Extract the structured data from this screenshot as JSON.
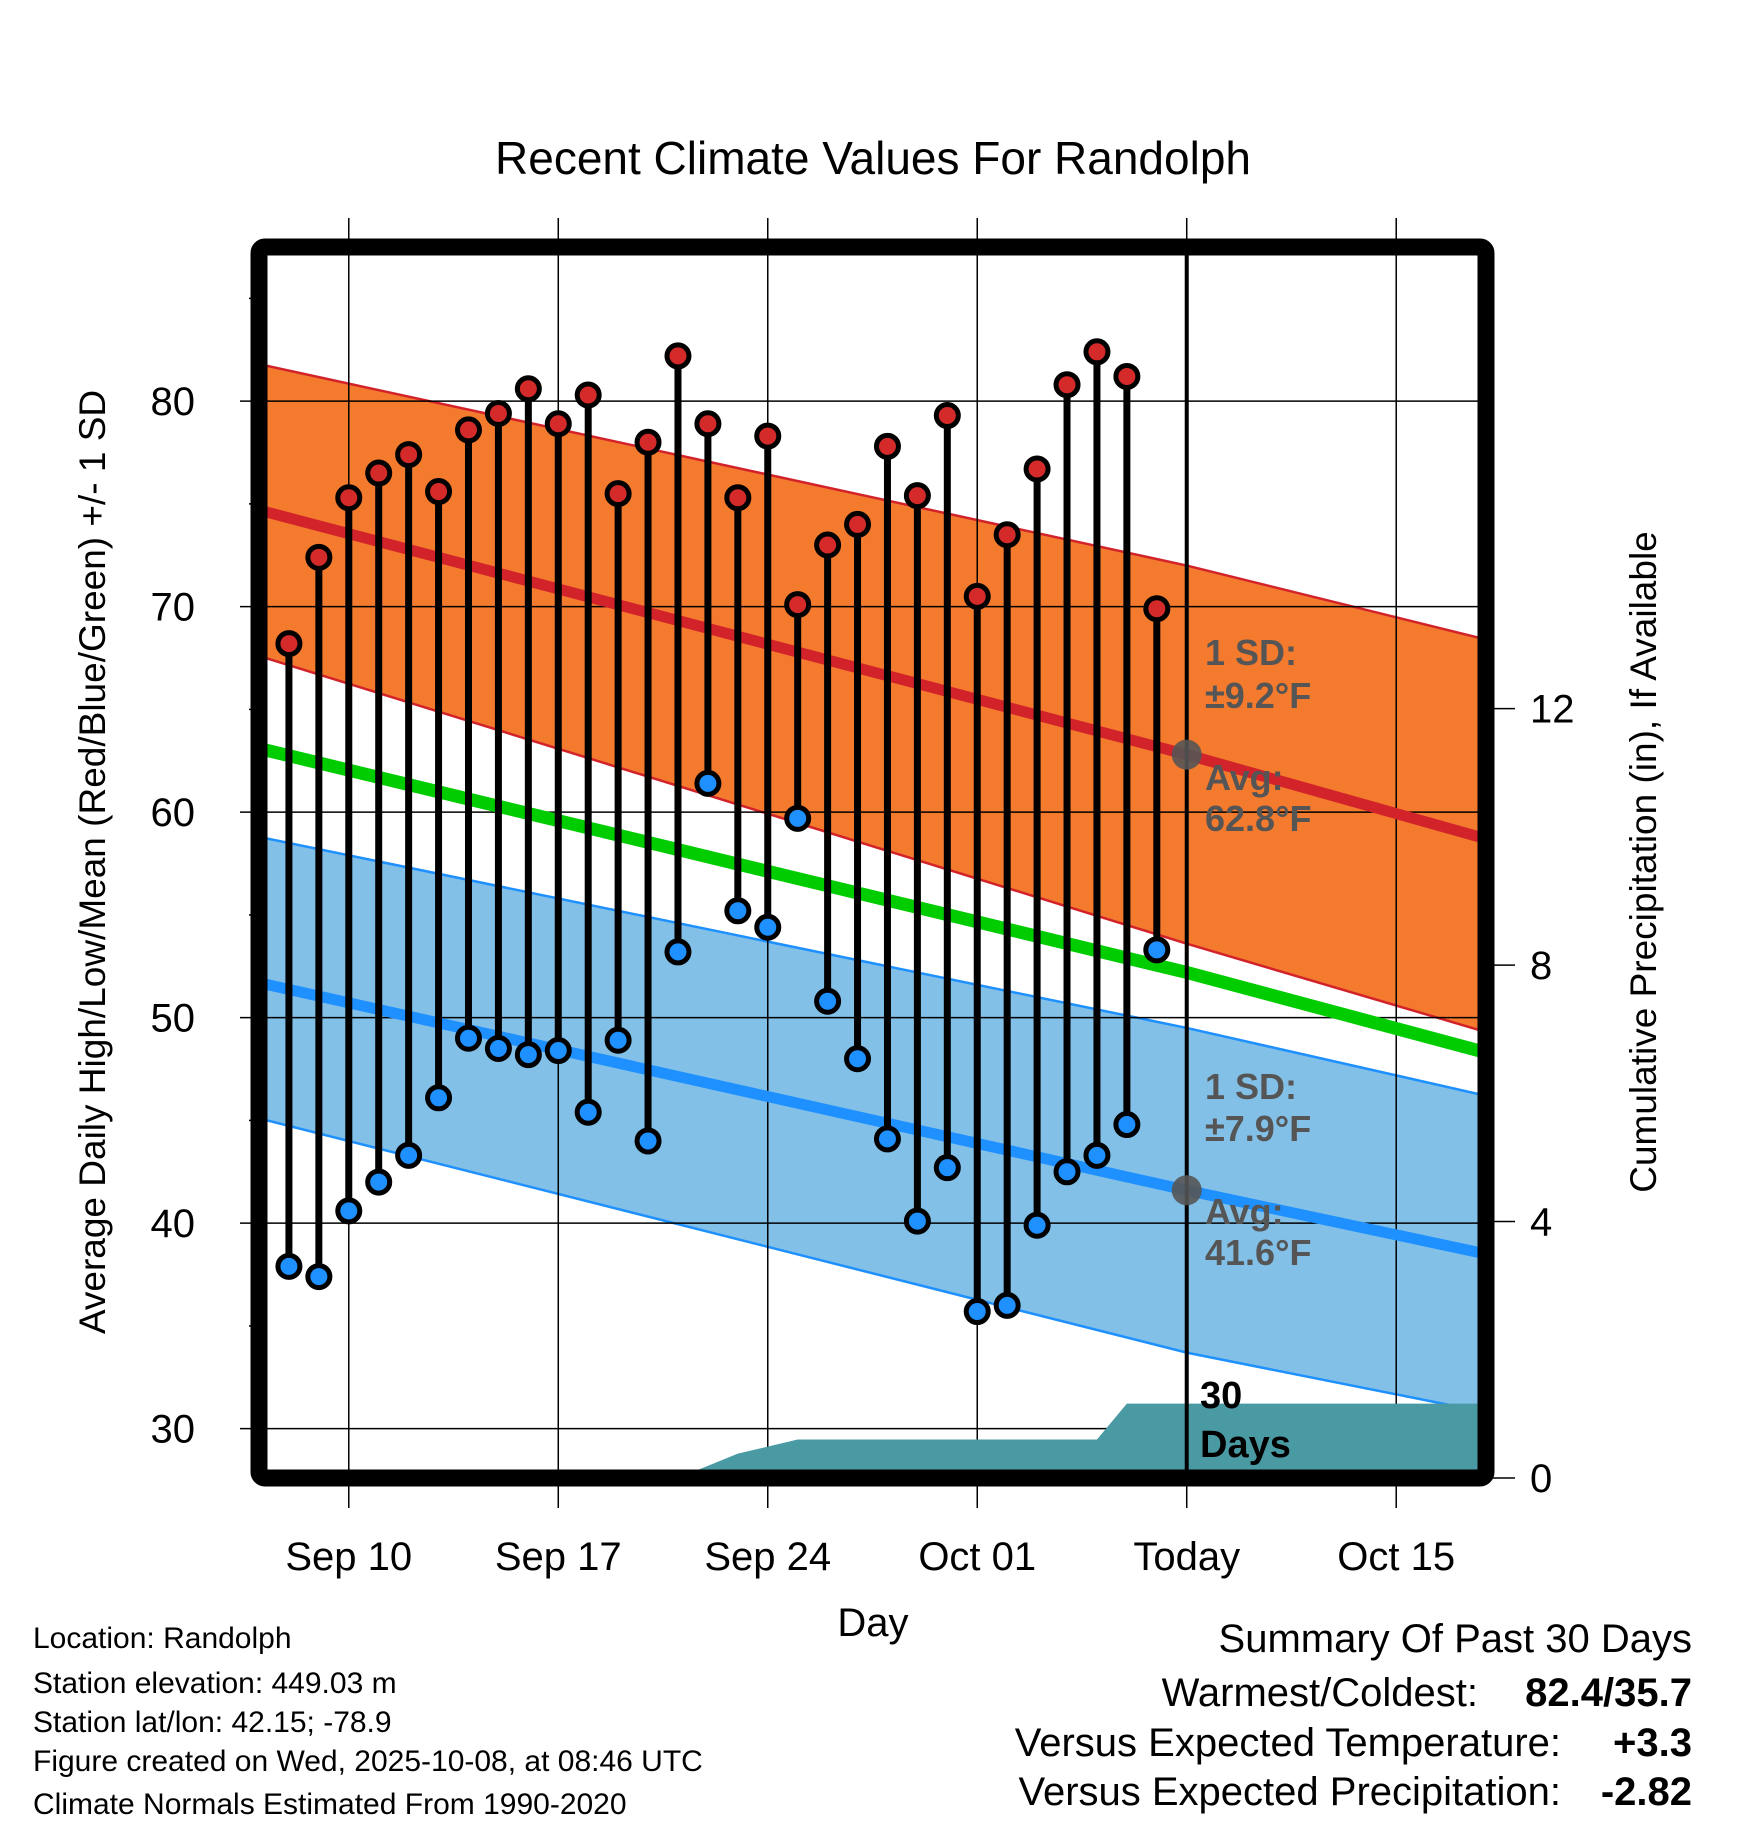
{
  "chart_data": {
    "type": "line",
    "title": "Recent Climate Values For Randolph",
    "xlabel": "Day",
    "ylabel": "Average Daily High/Low/Mean (Red/Blue/Green) +/- 1 SD",
    "y2label": "Cumulative Precipitation (in), If Available",
    "x_domain": [
      "2025-09-07",
      "2025-10-18"
    ],
    "ylim": [
      27.6,
      87.5
    ],
    "y2lim": [
      0,
      19.2
    ],
    "grid": true,
    "x_ticks": [
      {
        "date": "2025-09-10",
        "label": "Sep 10"
      },
      {
        "date": "2025-09-17",
        "label": "Sep 17"
      },
      {
        "date": "2025-09-24",
        "label": "Sep 24"
      },
      {
        "date": "2025-10-01",
        "label": "Oct 01"
      },
      {
        "date": "2025-10-08",
        "label": "Today"
      },
      {
        "date": "2025-10-15",
        "label": "Oct 15"
      }
    ],
    "y_ticks": [
      30,
      40,
      50,
      60,
      70,
      80
    ],
    "y_minor_ticks": [
      35,
      45,
      55,
      65,
      75,
      85
    ],
    "y2_ticks": [
      0,
      4,
      8,
      12
    ],
    "today": "2025-10-08",
    "daily": {
      "dates": [
        "2025-09-08",
        "2025-09-09",
        "2025-09-10",
        "2025-09-11",
        "2025-09-12",
        "2025-09-13",
        "2025-09-14",
        "2025-09-15",
        "2025-09-16",
        "2025-09-17",
        "2025-09-18",
        "2025-09-19",
        "2025-09-20",
        "2025-09-21",
        "2025-09-22",
        "2025-09-23",
        "2025-09-24",
        "2025-09-25",
        "2025-09-26",
        "2025-09-27",
        "2025-09-28",
        "2025-09-29",
        "2025-09-30",
        "2025-10-01",
        "2025-10-02",
        "2025-10-03",
        "2025-10-04",
        "2025-10-05",
        "2025-10-06",
        "2025-10-07"
      ],
      "highs": [
        68.2,
        72.4,
        75.3,
        76.5,
        77.4,
        75.6,
        78.6,
        79.4,
        80.6,
        78.9,
        80.3,
        75.5,
        78.0,
        82.2,
        78.9,
        75.3,
        78.3,
        70.1,
        73.0,
        74.0,
        77.8,
        75.4,
        79.3,
        70.5,
        73.5,
        76.7,
        80.8,
        82.4,
        81.2,
        69.9
      ],
      "lows": [
        37.9,
        37.4,
        40.6,
        42.0,
        43.3,
        46.1,
        49.0,
        48.5,
        48.2,
        48.4,
        45.4,
        48.9,
        44.0,
        53.2,
        61.4,
        55.2,
        54.4,
        59.7,
        50.8,
        48.0,
        44.1,
        40.1,
        42.7,
        35.7,
        36.0,
        39.9,
        42.5,
        43.3,
        44.8,
        53.3
      ]
    },
    "normals": {
      "dates": [
        "2025-09-07",
        "2025-10-08",
        "2025-10-18"
      ],
      "high_upper": [
        81.8,
        72.0,
        68.4
      ],
      "high_mean": [
        74.7,
        62.8,
        58.7
      ],
      "high_lower": [
        67.6,
        53.6,
        49.3
      ],
      "mean": [
        63.1,
        52.2,
        48.3
      ],
      "low_upper": [
        58.8,
        49.5,
        46.2
      ],
      "low_mean": [
        51.7,
        41.6,
        38.5
      ],
      "low_lower": [
        45.1,
        33.7,
        30.8
      ]
    },
    "precip": {
      "dates": [
        "2025-09-20",
        "2025-09-21",
        "2025-09-23",
        "2025-09-25",
        "2025-10-05",
        "2025-10-06",
        "2025-10-18"
      ],
      "values": [
        0,
        0,
        0.38,
        0.6,
        0.6,
        1.16,
        1.16
      ]
    },
    "annotations": {
      "high_sd_label": "1 SD:",
      "high_sd_value": "±9.2°F",
      "high_avg_label": "Avg:",
      "high_avg_value": "62.8°F",
      "high_avg": 62.8,
      "low_sd_label": "1 SD:",
      "low_sd_value": "±7.9°F",
      "low_avg_label": "Avg:",
      "low_avg_value": "41.6°F",
      "low_avg": 41.6,
      "precip_window_line1": "30",
      "precip_window_line2": "Days"
    },
    "colors": {
      "high_band": "#f47a2e",
      "high_line": "#d2232a",
      "mean_line": "#00cc00",
      "low_band": "#82c0e8",
      "low_line": "#1e90ff",
      "precip": "#4a9aa4",
      "high_dot": "#d42a2a",
      "low_dot": "#1e90ff",
      "annotation": "#555555"
    }
  },
  "info": {
    "location": "Location: Randolph",
    "elevation": "Station elevation: 449.03 m",
    "latlon": "Station lat/lon: 42.15; -78.9",
    "created": "Figure created on Wed, 2025-10-08, at 08:46 UTC",
    "normals": "Climate Normals Estimated From 1990-2020"
  },
  "summary": {
    "title": "Summary Of Past 30 Days",
    "warmest_coldest_label": "Warmest/Coldest:",
    "warmest_coldest_value": "82.4/35.7",
    "temp_label": "Versus Expected Temperature:",
    "temp_value": "+3.3",
    "temp_color": "#d42a2a",
    "precip_label": "Versus Expected Precipitation:",
    "precip_value": "-2.82",
    "precip_color": "#a0522d"
  }
}
